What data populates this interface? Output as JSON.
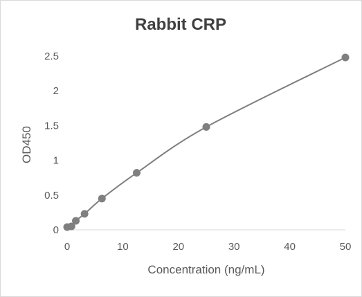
{
  "chart_data": {
    "type": "scatter",
    "title": "Rabbit CRP",
    "xlabel": "Concentration (ng/mL)",
    "ylabel": "OD450",
    "xlim": [
      0,
      50
    ],
    "ylim": [
      0,
      2.5
    ],
    "x_ticks": [
      "0",
      "10",
      "20",
      "30",
      "40",
      "50"
    ],
    "y_ticks": [
      "0",
      "0.5",
      "1",
      "1.5",
      "2",
      "2.5"
    ],
    "grid": false,
    "trendline": "smooth curve",
    "colors": {
      "marker": "#7f7f7f",
      "line": "#7f7f7f",
      "axis": "#d9d9d9"
    },
    "points": [
      {
        "x": 0,
        "y": 0.04
      },
      {
        "x": 0.78,
        "y": 0.05
      },
      {
        "x": 1.56,
        "y": 0.13
      },
      {
        "x": 3.13,
        "y": 0.23
      },
      {
        "x": 6.25,
        "y": 0.45
      },
      {
        "x": 12.5,
        "y": 0.82
      },
      {
        "x": 25,
        "y": 1.48
      },
      {
        "x": 50,
        "y": 2.48
      }
    ]
  }
}
